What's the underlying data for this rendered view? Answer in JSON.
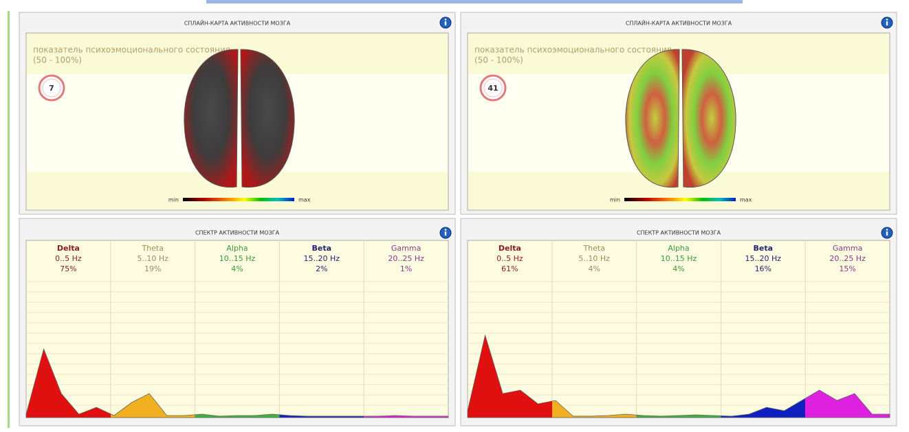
{
  "panels": [
    {
      "map": {
        "title": "СПЛАЙН-КАРТА АКТИВНОСТИ МОЗГА",
        "caption": "показатель психоэмоционального состояния",
        "range": "(50 - 100%)",
        "index": "7",
        "scale_min": "min",
        "scale_max": "max",
        "palette": "dark"
      },
      "spectrum": {
        "title": "СПЕКТР АКТИВНОСТИ МОЗГА",
        "bands": [
          {
            "name": "Delta",
            "range": "0..5 Hz",
            "share": "75%"
          },
          {
            "name": "Theta",
            "range": "5..10 Hz",
            "share": "19%"
          },
          {
            "name": "Alpha",
            "range": "10..15 Hz",
            "share": "4%"
          },
          {
            "name": "Beta",
            "range": "15..20 Hz",
            "share": "2%"
          },
          {
            "name": "Gamma",
            "range": "20..25 Hz",
            "share": "1%"
          }
        ],
        "curve": [
          5,
          100,
          35,
          5,
          15,
          3,
          22,
          35,
          3,
          3,
          5,
          2,
          3,
          3,
          5,
          3,
          2,
          2,
          2,
          2,
          2,
          3,
          2,
          2,
          2
        ]
      }
    },
    {
      "map": {
        "title": "СПЛАЙН-КАРТА АКТИВНОСТИ МОЗГА",
        "caption": "показатель психоэмоционального состояния",
        "range": "(50 - 100%)",
        "index": "41",
        "scale_min": "min",
        "scale_max": "max",
        "palette": "bright"
      },
      "spectrum": {
        "title": "СПЕКТР АКТИВНОСТИ МОЗГА",
        "bands": [
          {
            "name": "Delta",
            "range": "0..5 Hz",
            "share": "61%"
          },
          {
            "name": "Theta",
            "range": "5..10 Hz",
            "share": "4%"
          },
          {
            "name": "Alpha",
            "range": "10..15 Hz",
            "share": "4%"
          },
          {
            "name": "Beta",
            "range": "15..20 Hz",
            "share": "16%"
          },
          {
            "name": "Gamma",
            "range": "20..25 Hz",
            "share": "15%"
          }
        ],
        "curve": [
          10,
          120,
          35,
          40,
          20,
          25,
          2,
          2,
          3,
          5,
          3,
          2,
          3,
          4,
          3,
          2,
          5,
          15,
          10,
          25,
          40,
          25,
          35,
          5,
          5
        ]
      }
    }
  ]
}
